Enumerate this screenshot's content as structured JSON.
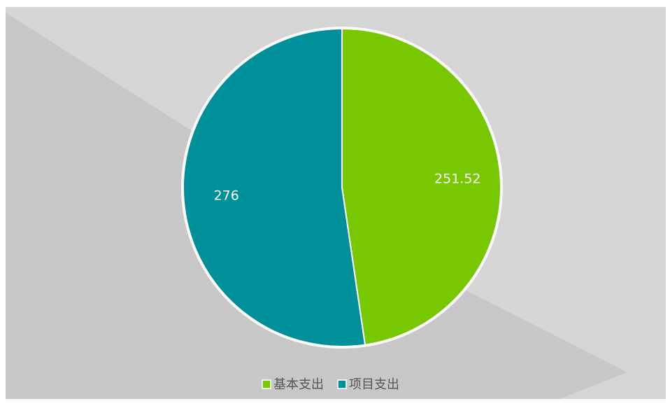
{
  "chart_data": {
    "type": "pie",
    "categories": [
      "基本支出",
      "项目支出"
    ],
    "values": [
      251.52,
      276
    ],
    "colors": [
      "#77c800",
      "#00909a"
    ]
  }
}
